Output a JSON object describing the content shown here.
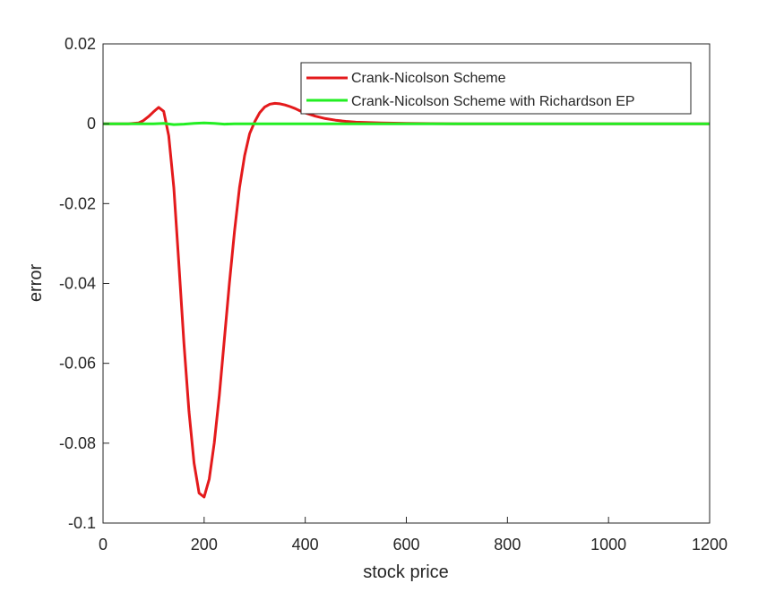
{
  "chart_data": {
    "type": "line",
    "title": "",
    "xlabel": "stock price",
    "ylabel": "error",
    "xlim": [
      0,
      1200
    ],
    "ylim": [
      -0.1,
      0.02
    ],
    "xticks": [
      0,
      200,
      400,
      600,
      800,
      1000,
      1200
    ],
    "xtick_labels": [
      "0",
      "200",
      "400",
      "600",
      "800",
      "1000",
      "1200"
    ],
    "yticks": [
      -0.1,
      -0.08,
      -0.06,
      -0.04,
      -0.02,
      0,
      0.02
    ],
    "ytick_labels": [
      "-0.1",
      "-0.08",
      "-0.06",
      "-0.04",
      "-0.02",
      "0",
      "0.02"
    ],
    "grid": false,
    "legend_position": "top-right",
    "series": [
      {
        "name": "Crank-Nicolson Scheme",
        "color": "#e41a1c",
        "x": [
          0,
          50,
          70,
          80,
          90,
          100,
          110,
          120,
          130,
          140,
          150,
          160,
          170,
          180,
          190,
          200,
          210,
          220,
          230,
          240,
          250,
          260,
          270,
          280,
          290,
          300,
          310,
          320,
          330,
          340,
          350,
          360,
          370,
          380,
          390,
          400,
          420,
          440,
          460,
          480,
          500,
          550,
          600,
          700,
          800,
          1000,
          1200
        ],
        "y": [
          0,
          0,
          0.0002,
          0.0008,
          0.0018,
          0.003,
          0.0041,
          0.0031,
          -0.003,
          -0.016,
          -0.035,
          -0.055,
          -0.072,
          -0.085,
          -0.0925,
          -0.0935,
          -0.089,
          -0.08,
          -0.068,
          -0.054,
          -0.04,
          -0.027,
          -0.016,
          -0.008,
          -0.0025,
          0.0005,
          0.0028,
          0.0042,
          0.0049,
          0.0051,
          0.005,
          0.0047,
          0.0043,
          0.0038,
          0.0032,
          0.0027,
          0.0019,
          0.0013,
          0.0009,
          0.0006,
          0.0004,
          0.0002,
          0.0001,
          0,
          0,
          0,
          0
        ]
      },
      {
        "name": "Crank-Nicolson Scheme with Richardson EP",
        "color": "#22ee22",
        "x": [
          0,
          100,
          120,
          140,
          160,
          180,
          200,
          220,
          240,
          260,
          300,
          400,
          600,
          800,
          1000,
          1200
        ],
        "y": [
          0,
          0,
          0.0001,
          -0.0002,
          -0.0001,
          0.0001,
          0.0002,
          0.0001,
          -0.0001,
          0,
          0,
          0,
          0,
          0,
          0,
          0
        ]
      }
    ]
  }
}
